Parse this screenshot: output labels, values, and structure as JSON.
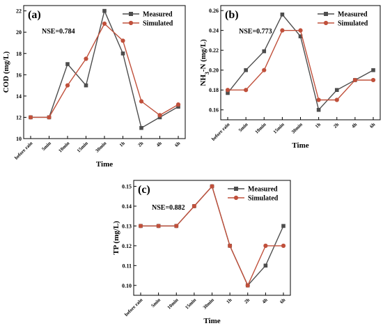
{
  "chart_data": [
    {
      "type": "line",
      "panel_label": "(a)",
      "annotation": "NSE=0.784",
      "xlabel": "Time",
      "ylabel": "COD (mg/L)",
      "categories": [
        "before rain",
        "5min",
        "10min",
        "15min",
        "30min",
        "1h",
        "2h",
        "4h",
        "6h"
      ],
      "ylim": [
        10,
        22.5
      ],
      "yticks": [
        "10",
        "12",
        "14",
        "16",
        "18",
        "20",
        "22"
      ],
      "legend_position": "top-right",
      "series": [
        {
          "name": "Measured",
          "color": "#4d4d4d",
          "marker": "square",
          "values": [
            12,
            12,
            17,
            15,
            22,
            18,
            11,
            12,
            13
          ]
        },
        {
          "name": "Simulated",
          "color": "#c0503b",
          "marker": "circle",
          "values": [
            12,
            12,
            15,
            17.5,
            20.8,
            19.2,
            13.5,
            12.2,
            13.2
          ]
        }
      ]
    },
    {
      "type": "line",
      "panel_label": "(b)",
      "annotation": "NSE=0.773",
      "xlabel": "Time",
      "ylabel": "NH3-N (mg/L)",
      "categories": [
        "before rain",
        "5min",
        "10min",
        "15min",
        "30min",
        "1h",
        "2h",
        "4h",
        "6h"
      ],
      "ylim": [
        0.15,
        0.265
      ],
      "yticks": [
        "0.16",
        "0.18",
        "0.20",
        "0.22",
        "0.24",
        "0.26"
      ],
      "legend_position": "top-right",
      "series": [
        {
          "name": "Measured",
          "color": "#4d4d4d",
          "marker": "square",
          "values": [
            0.177,
            0.2,
            0.219,
            0.256,
            0.234,
            0.16,
            0.18,
            0.19,
            0.2
          ]
        },
        {
          "name": "Simulated",
          "color": "#c0503b",
          "marker": "circle",
          "values": [
            0.18,
            0.18,
            0.2,
            0.24,
            0.24,
            0.17,
            0.17,
            0.19,
            0.19
          ]
        }
      ]
    },
    {
      "type": "line",
      "panel_label": "(c)",
      "annotation": "NSE=0.882",
      "xlabel": "Time",
      "ylabel": "TP (mg/L)",
      "categories": [
        "before rain",
        "5min",
        "10min",
        "15min",
        "30min",
        "1h",
        "2h",
        "4h",
        "6h"
      ],
      "ylim": [
        0.095,
        0.153
      ],
      "yticks": [
        "0.10",
        "0.11",
        "0.12",
        "0.13",
        "0.14",
        "0.15"
      ],
      "legend_position": "top-right",
      "series": [
        {
          "name": "Measured",
          "color": "#4d4d4d",
          "marker": "square",
          "values": [
            0.13,
            0.13,
            0.13,
            0.14,
            0.15,
            0.12,
            0.1,
            0.11,
            0.13
          ]
        },
        {
          "name": "Simulated",
          "color": "#c0503b",
          "marker": "circle",
          "values": [
            0.13,
            0.13,
            0.13,
            0.14,
            0.15,
            0.12,
            0.1,
            0.12,
            0.12
          ]
        }
      ]
    }
  ]
}
